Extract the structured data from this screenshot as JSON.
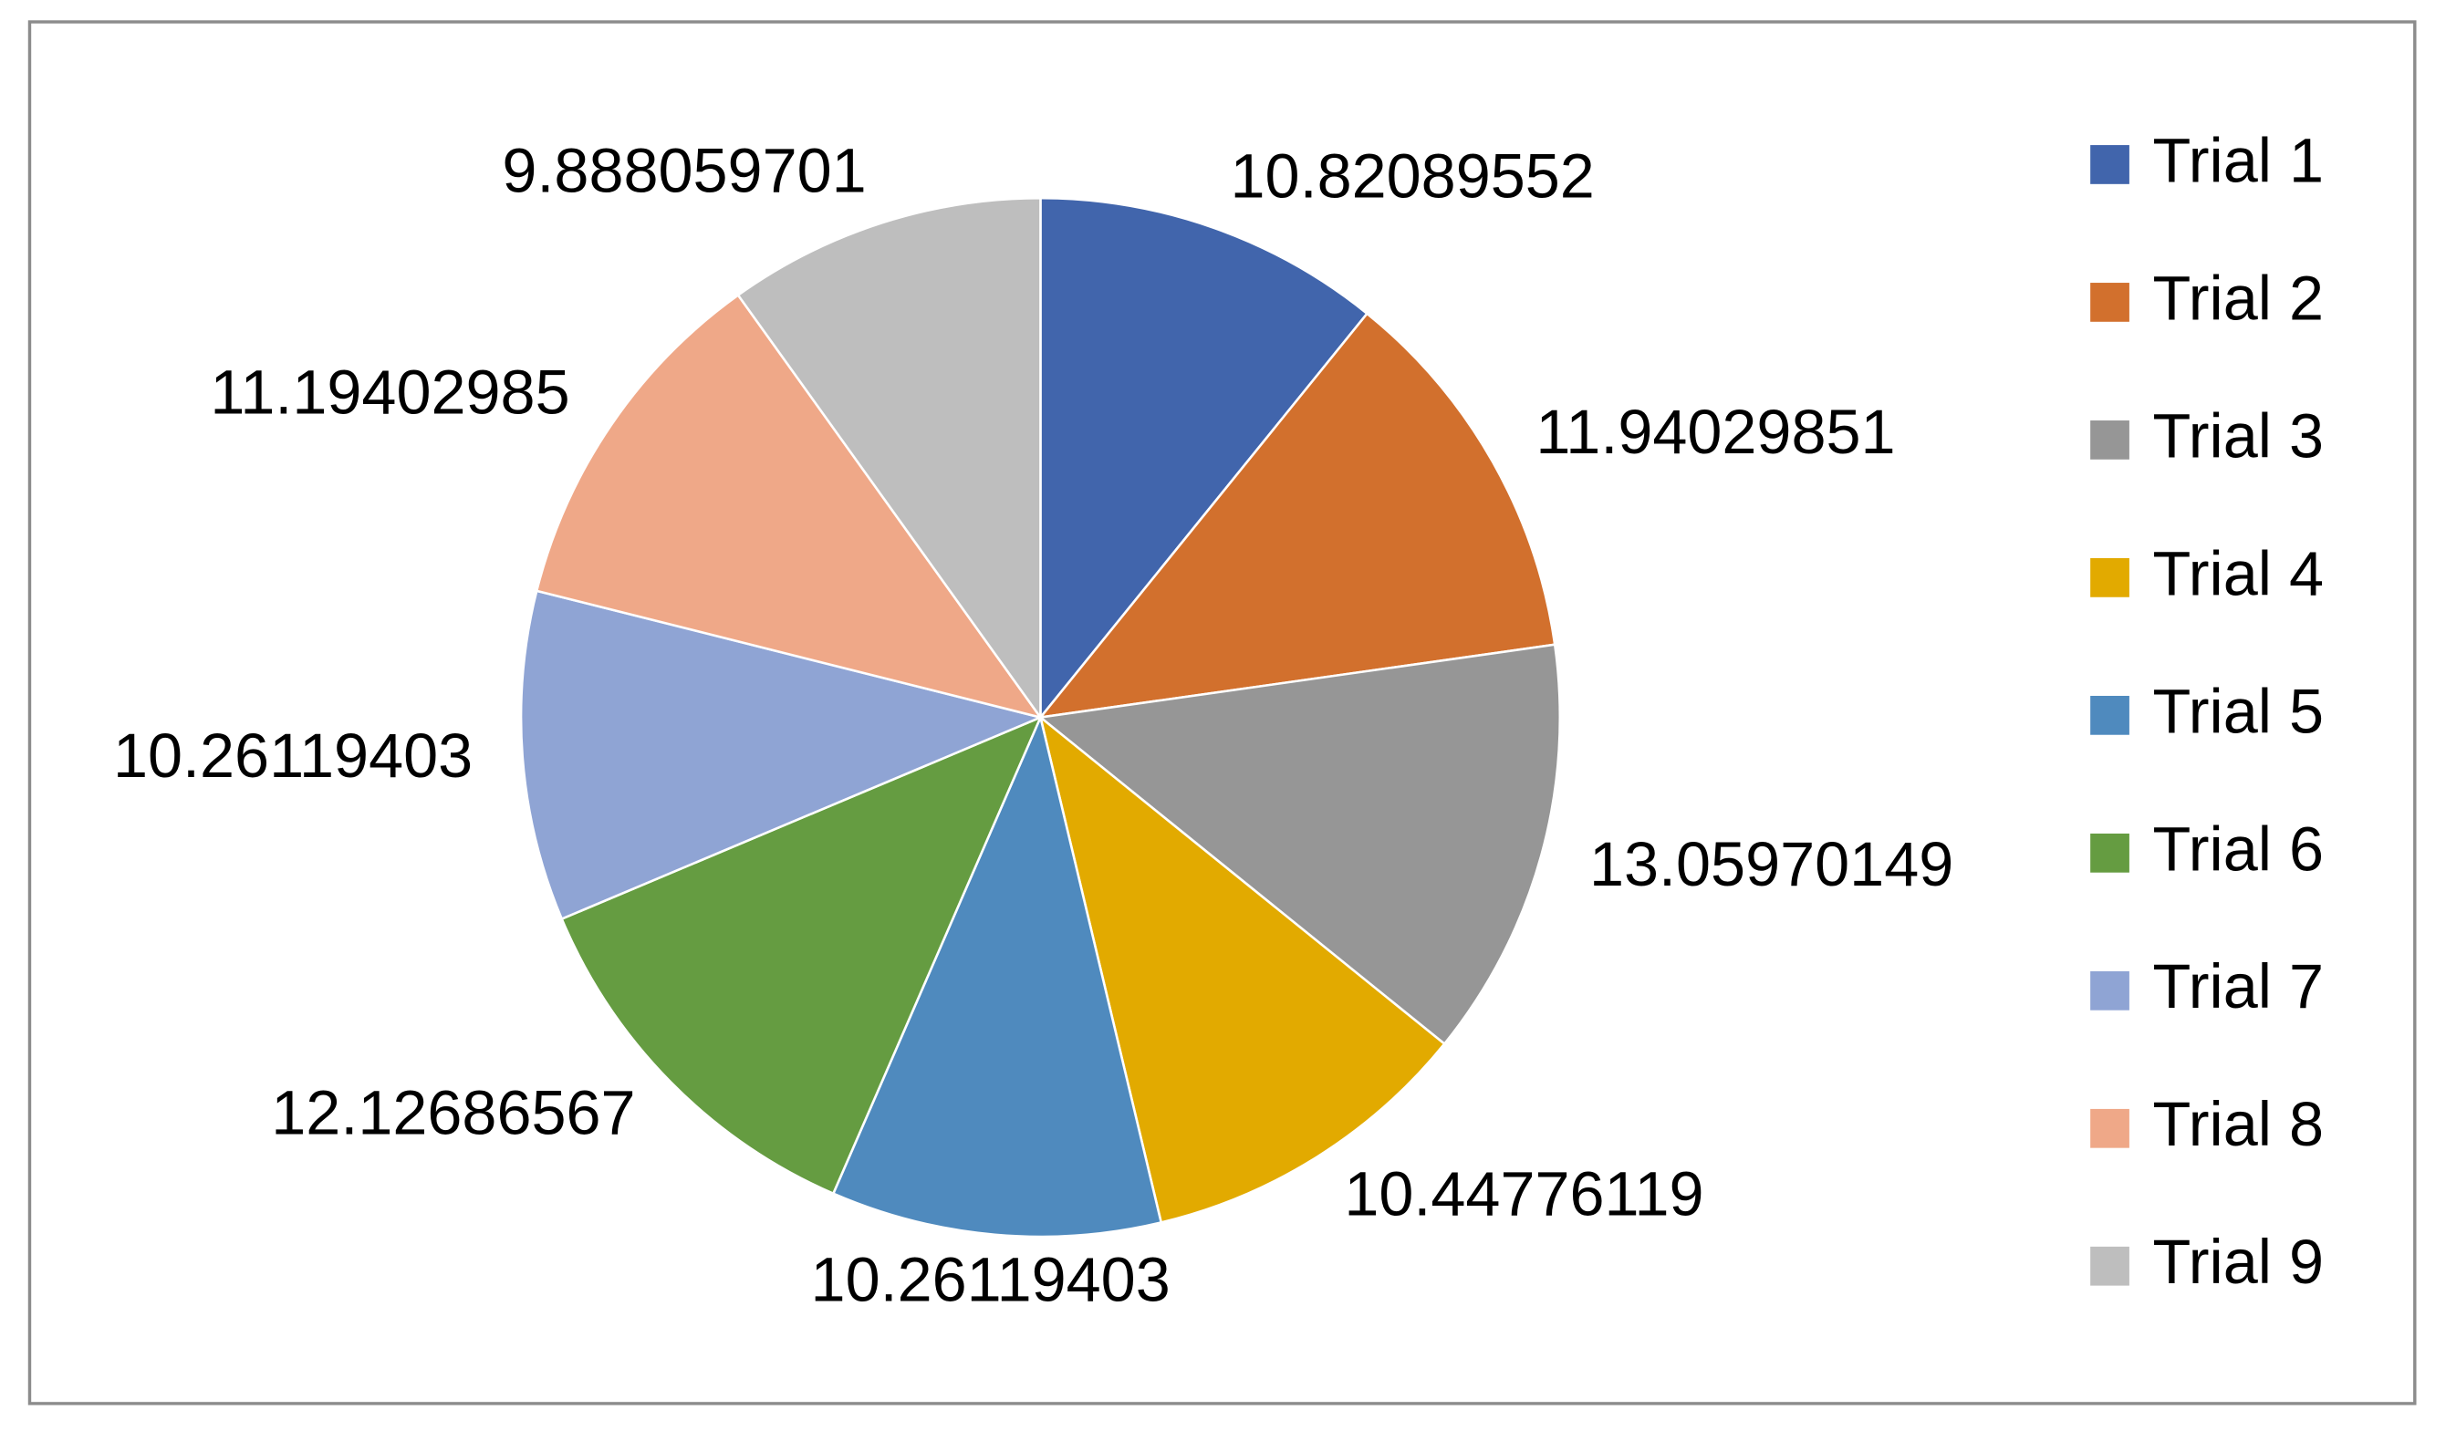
{
  "chart_data": {
    "type": "pie",
    "categories": [
      "Trial 1",
      "Trial 2",
      "Trial 3",
      "Trial 4",
      "Trial 5",
      "Trial 6",
      "Trial 7",
      "Trial 8",
      "Trial 9"
    ],
    "values": [
      10.82089552,
      11.94029851,
      13.05970149,
      10.44776119,
      10.26119403,
      12.12686567,
      10.26119403,
      11.19402985,
      9.888059701
    ],
    "colors": [
      "#4165ac",
      "#d2702d",
      "#969696",
      "#e2aa00",
      "#4f8abe",
      "#659c41",
      "#8fa4d4",
      "#efa888",
      "#bebebe"
    ],
    "legend": "right"
  }
}
